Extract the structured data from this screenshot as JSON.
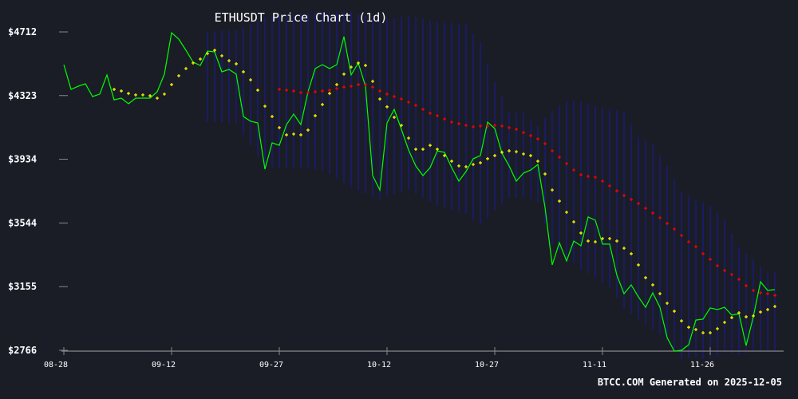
{
  "chart_data": {
    "type": "line",
    "title": "ETHUSDT Price Chart (1d)",
    "xlabel": "",
    "ylabel": "",
    "ylim": [
      2766,
      4712
    ],
    "y_ticks": [
      "$4712",
      "$4323",
      "$3934",
      "$3544",
      "$3155",
      "$2766"
    ],
    "y_tick_values": [
      4712,
      4323,
      3934,
      3544,
      3155,
      2766
    ],
    "x_ticks": [
      "08-28",
      "09-12",
      "09-27",
      "10-12",
      "10-27",
      "11-11",
      "11-26"
    ],
    "x_tick_days": [
      0,
      15,
      30,
      45,
      60,
      75,
      90
    ],
    "days": 100,
    "grid": false,
    "series": [
      {
        "name": "price",
        "color": "#00ff00",
        "start": 0,
        "values": [
          4512,
          4361,
          4380,
          4395,
          4317,
          4332,
          4449,
          4297,
          4307,
          4273,
          4307,
          4307,
          4307,
          4346,
          4454,
          4707,
          4668,
          4600,
          4527,
          4507,
          4595,
          4590,
          4468,
          4483,
          4454,
          4195,
          4166,
          4156,
          3873,
          4034,
          4019,
          4146,
          4210,
          4146,
          4346,
          4488,
          4512,
          4488,
          4512,
          4683,
          4449,
          4522,
          4380,
          3834,
          3746,
          4156,
          4239,
          4117,
          3990,
          3893,
          3834,
          3883,
          3985,
          3976,
          3883,
          3800,
          3859,
          3937,
          3956,
          4161,
          4122,
          3971,
          3893,
          3800,
          3849,
          3868,
          3902,
          3639,
          3288,
          3424,
          3312,
          3434,
          3405,
          3581,
          3561,
          3415,
          3415,
          3225,
          3112,
          3166,
          3093,
          3029,
          3117,
          3029,
          2844,
          2761,
          2766,
          2800,
          2951,
          2956,
          3025,
          3015,
          3029,
          2981,
          2990,
          2795,
          2971,
          3185,
          3132,
          3137
        ]
      },
      {
        "name": "short-ma",
        "color": "#ffff00",
        "start": 7,
        "values": [
          4361,
          4351,
          4336,
          4327,
          4327,
          4322,
          4307,
          4332,
          4390,
          4444,
          4488,
          4522,
          4546,
          4580,
          4600,
          4566,
          4536,
          4517,
          4468,
          4419,
          4356,
          4258,
          4195,
          4127,
          4083,
          4088,
          4083,
          4112,
          4200,
          4268,
          4336,
          4390,
          4454,
          4497,
          4522,
          4507,
          4410,
          4302,
          4254,
          4190,
          4141,
          4063,
          3995,
          3995,
          4019,
          3995,
          3956,
          3922,
          3893,
          3888,
          3902,
          3912,
          3937,
          3956,
          3976,
          3985,
          3980,
          3966,
          3956,
          3922,
          3844,
          3746,
          3678,
          3610,
          3551,
          3483,
          3434,
          3429,
          3449,
          3449,
          3434,
          3390,
          3356,
          3288,
          3210,
          3166,
          3112,
          3054,
          3005,
          2946,
          2907,
          2893,
          2873,
          2873,
          2898,
          2937,
          2966,
          2995,
          2971,
          2976,
          3000,
          3015,
          3034
        ]
      },
      {
        "name": "long-ma",
        "color": "#ff0000",
        "start": 30,
        "values": [
          4361,
          4356,
          4351,
          4341,
          4341,
          4346,
          4351,
          4356,
          4366,
          4375,
          4380,
          4390,
          4390,
          4375,
          4351,
          4332,
          4317,
          4302,
          4283,
          4263,
          4239,
          4215,
          4200,
          4180,
          4161,
          4151,
          4141,
          4132,
          4137,
          4137,
          4141,
          4137,
          4127,
          4117,
          4097,
          4078,
          4058,
          4029,
          3985,
          3946,
          3907,
          3868,
          3839,
          3829,
          3824,
          3800,
          3771,
          3741,
          3712,
          3688,
          3663,
          3634,
          3605,
          3576,
          3541,
          3507,
          3468,
          3429,
          3400,
          3356,
          3322,
          3283,
          3254,
          3229,
          3200,
          3161,
          3132,
          3117,
          3112,
          3102
        ]
      }
    ],
    "bands": {
      "color": "#1a1a8c",
      "start": 20,
      "upper": [
        4712,
        4717,
        4720,
        4722,
        4722,
        4742,
        4761,
        4780,
        4800,
        4805,
        4810,
        4815,
        4819,
        4823,
        4827,
        4831,
        4834,
        4834,
        4834,
        4834,
        4834,
        4822,
        4810,
        4797,
        4785,
        4791,
        4797,
        4803,
        4810,
        4800,
        4790,
        4780,
        4771,
        4768,
        4766,
        4763,
        4761,
        4700,
        4650,
        4520,
        4405,
        4320,
        4224,
        4222,
        4219,
        4178,
        4136,
        4185,
        4234,
        4261,
        4288,
        4288,
        4288,
        4273,
        4258,
        4249,
        4239,
        4232,
        4224,
        4146,
        4068,
        4049,
        4029,
        3961,
        3893,
        3815,
        3737,
        3712,
        3688,
        3668,
        3649,
        3607,
        3566,
        3480,
        3395,
        3358,
        3322,
        3280,
        3239,
        3249
      ],
      "lower": [
        4161,
        4161,
        4158,
        4155,
        4151,
        4084,
        4017,
        3950,
        3883,
        3883,
        3883,
        3883,
        3883,
        3879,
        3875,
        3872,
        3868,
        3841,
        3815,
        3788,
        3761,
        3743,
        3725,
        3706,
        3688,
        3704,
        3720,
        3735,
        3751,
        3725,
        3700,
        3675,
        3649,
        3637,
        3625,
        3612,
        3600,
        3566,
        3532,
        3578,
        3624,
        3661,
        3698,
        3700,
        3702,
        3688,
        3673,
        3542,
        3410,
        3371,
        3332,
        3296,
        3259,
        3237,
        3215,
        3183,
        3151,
        3086,
        3020,
        2988,
        2956,
        2925,
        2893,
        2859,
        2824,
        2768,
        2712,
        2720,
        2727,
        2708,
        2688,
        2725,
        2761,
        2749,
        2737,
        2749,
        2761,
        2761,
        2761,
        2761
      ]
    }
  },
  "footer": "BTCC.COM Generated on 2025-12-05",
  "colors": {
    "background": "#1a1d26",
    "axis": "#888888"
  }
}
